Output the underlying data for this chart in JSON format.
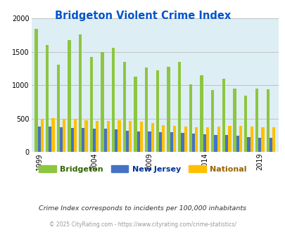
{
  "title": "Bridgeton Violent Crime Index",
  "title_color": "#0055cc",
  "subtitle": "Crime Index corresponds to incidents per 100,000 inhabitants",
  "footer": "© 2025 CityRating.com - https://www.cityrating.com/crime-statistics/",
  "years": [
    1999,
    2000,
    2001,
    2002,
    2003,
    2004,
    2005,
    2006,
    2007,
    2008,
    2009,
    2010,
    2011,
    2012,
    2013,
    2014,
    2015,
    2016,
    2017,
    2018,
    2019,
    2020
  ],
  "bridgeton": [
    1850,
    1600,
    1310,
    1680,
    1760,
    1420,
    1500,
    1560,
    1350,
    1130,
    1270,
    1220,
    1280,
    1350,
    1010,
    1150,
    930,
    1100,
    950,
    840,
    950,
    940
  ],
  "new_jersey": [
    380,
    385,
    370,
    360,
    360,
    350,
    345,
    340,
    320,
    310,
    305,
    300,
    295,
    290,
    275,
    260,
    255,
    250,
    240,
    220,
    210,
    210
  ],
  "national": [
    500,
    505,
    500,
    495,
    475,
    470,
    470,
    475,
    465,
    455,
    430,
    405,
    390,
    385,
    370,
    370,
    385,
    395,
    395,
    385,
    370,
    370
  ],
  "bridgeton_color": "#8dc63f",
  "nj_color": "#4472c4",
  "national_color": "#ffc000",
  "bg_color": "#deeef5",
  "ylim": [
    0,
    2000
  ],
  "yticks": [
    0,
    500,
    1000,
    1500,
    2000
  ],
  "xtick_years": [
    1999,
    2004,
    2009,
    2014,
    2019
  ],
  "grid_color": "#bbbbbb",
  "legend_labels": [
    "Bridgeton",
    "New Jersey",
    "National"
  ],
  "legend_label_colors": [
    "#336600",
    "#003399",
    "#996600"
  ]
}
